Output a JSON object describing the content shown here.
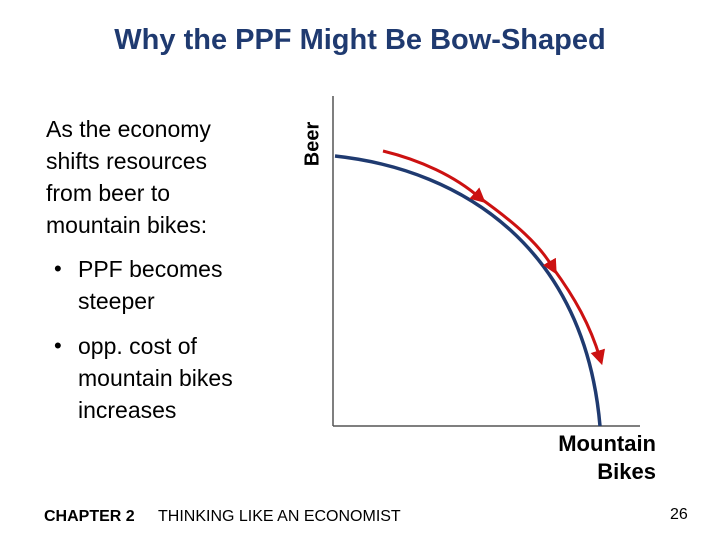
{
  "title": "Why the PPF Might Be Bow-Shaped",
  "intro": [
    "As the economy",
    "shifts resources",
    "from beer to",
    "mountain bikes:"
  ],
  "bullets": [
    {
      "lines": [
        "PPF becomes",
        "steeper"
      ]
    },
    {
      "lines": [
        "opp. cost of",
        "mountain bikes",
        "increases"
      ]
    }
  ],
  "graph": {
    "y_axis_label": "Beer",
    "x_axis_label": [
      "Mountain",
      "Bikes"
    ],
    "curve_color": "#1f3a70",
    "arrow_color": "#cc1111"
  },
  "footer": {
    "chapter": "CHAPTER 2",
    "chapter_title": "THINKING LIKE AN ECONOMIST",
    "page_number": "26"
  }
}
